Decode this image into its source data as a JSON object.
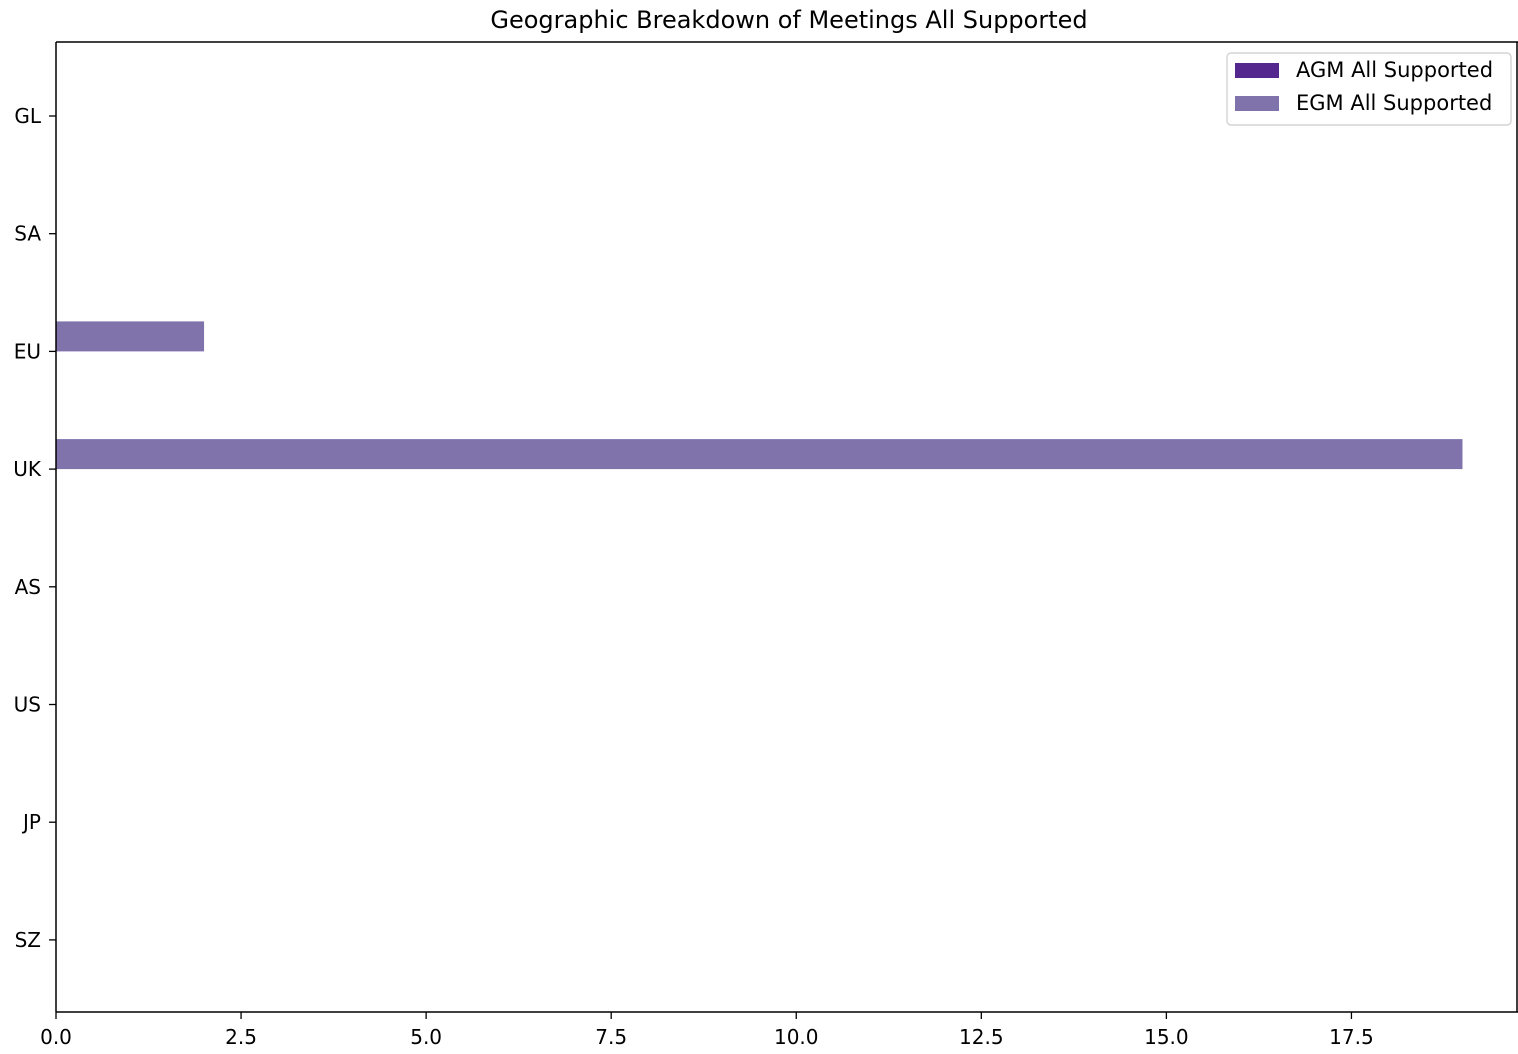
{
  "chart_data": {
    "type": "bar",
    "orientation": "horizontal",
    "title": "Geographic Breakdown of Meetings All Supported",
    "xlabel": "",
    "ylabel": "",
    "categories": [
      "GL",
      "SA",
      "EU",
      "UK",
      "AS",
      "US",
      "JP",
      "SZ"
    ],
    "series": [
      {
        "name": "AGM All Supported",
        "color": "#54278f",
        "values": [
          0,
          0,
          0,
          0,
          0,
          0,
          0,
          0
        ]
      },
      {
        "name": "EGM All Supported",
        "color": "#8073ac",
        "values": [
          0,
          0,
          2,
          19,
          0,
          0,
          0,
          0
        ]
      }
    ],
    "xlim": [
      0,
      19.75
    ],
    "xticks": [
      0.0,
      2.5,
      5.0,
      7.5,
      10.0,
      12.5,
      15.0,
      17.5
    ],
    "xtick_labels": [
      "0.0",
      "2.5",
      "5.0",
      "7.5",
      "10.0",
      "12.5",
      "15.0",
      "17.5"
    ],
    "grid": false,
    "legend_position": "top-right"
  }
}
